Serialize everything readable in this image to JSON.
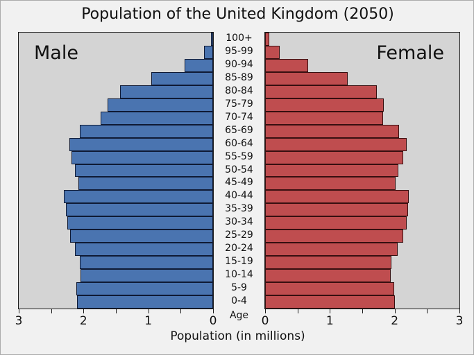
{
  "title": "Population of the United Kingdom (2050)",
  "left_label": "Male",
  "right_label": "Female",
  "age_axis_label": "Age",
  "x_axis_label": "Population (in millions)",
  "colors": {
    "male_bar": "#4a74b0",
    "female_bar": "#bf4d4f",
    "panel_background": "#d4d4d4",
    "figure_background": "#f1f1f1",
    "bar_edge": "#141414"
  },
  "chart_data": {
    "type": "bar",
    "subtype": "population-pyramid",
    "orientation": "horizontal",
    "categories_top_to_bottom": [
      "100+",
      "95-99",
      "90-94",
      "85-89",
      "80-84",
      "75-79",
      "70-74",
      "65-69",
      "60-64",
      "55-59",
      "50-54",
      "45-49",
      "40-44",
      "35-39",
      "30-34",
      "25-29",
      "20-24",
      "15-19",
      "10-14",
      "5-9",
      "0-4"
    ],
    "series": [
      {
        "name": "Male",
        "side": "left",
        "color": "#4a74b0",
        "values": [
          0.03,
          0.14,
          0.44,
          0.95,
          1.44,
          1.63,
          1.74,
          2.06,
          2.22,
          2.19,
          2.13,
          2.08,
          2.3,
          2.27,
          2.25,
          2.21,
          2.13,
          2.06,
          2.05,
          2.11,
          2.1
        ]
      },
      {
        "name": "Female",
        "side": "right",
        "color": "#bf4d4f",
        "values": [
          0.06,
          0.23,
          0.66,
          1.27,
          1.72,
          1.83,
          1.82,
          2.07,
          2.19,
          2.13,
          2.06,
          2.01,
          2.22,
          2.21,
          2.19,
          2.13,
          2.05,
          1.95,
          1.94,
          1.99,
          2.0
        ]
      }
    ],
    "xlim": [
      0,
      3
    ],
    "xticks_major": [
      0,
      1,
      2,
      3
    ],
    "xtick_minor_step": 0.5,
    "title": "Population of the United Kingdom (2050)",
    "xlabel": "Population (in millions)",
    "center_axis_label": "Age",
    "grid": false,
    "legend_position": "in-panel-text-labels"
  }
}
